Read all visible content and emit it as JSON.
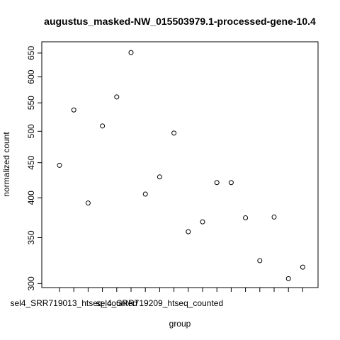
{
  "chart_data": {
    "type": "scatter",
    "title": "augustus_masked-NW_015503979.1-processed-gene-10.4",
    "xlabel": "group",
    "ylabel": "normalized count",
    "y_scale": "log",
    "ylim": [
      296,
      675
    ],
    "yticks": [
      300,
      350,
      400,
      450,
      500,
      550,
      600,
      650
    ],
    "x_tick_count": 18,
    "x_tick_labels": [
      {
        "index": 2,
        "text": "sel4_SRR719013_htseq_counted"
      },
      {
        "index": 8,
        "text": "sel4_SRR719209_htseq_counted"
      }
    ],
    "x": [
      1,
      2,
      3,
      4,
      5,
      6,
      7,
      8,
      9,
      10,
      11,
      12,
      13,
      14,
      15,
      16,
      17,
      18
    ],
    "values": [
      446,
      537,
      393,
      509,
      561,
      651,
      405,
      429,
      497,
      357,
      369,
      421,
      421,
      374,
      324,
      375,
      305,
      317
    ]
  }
}
